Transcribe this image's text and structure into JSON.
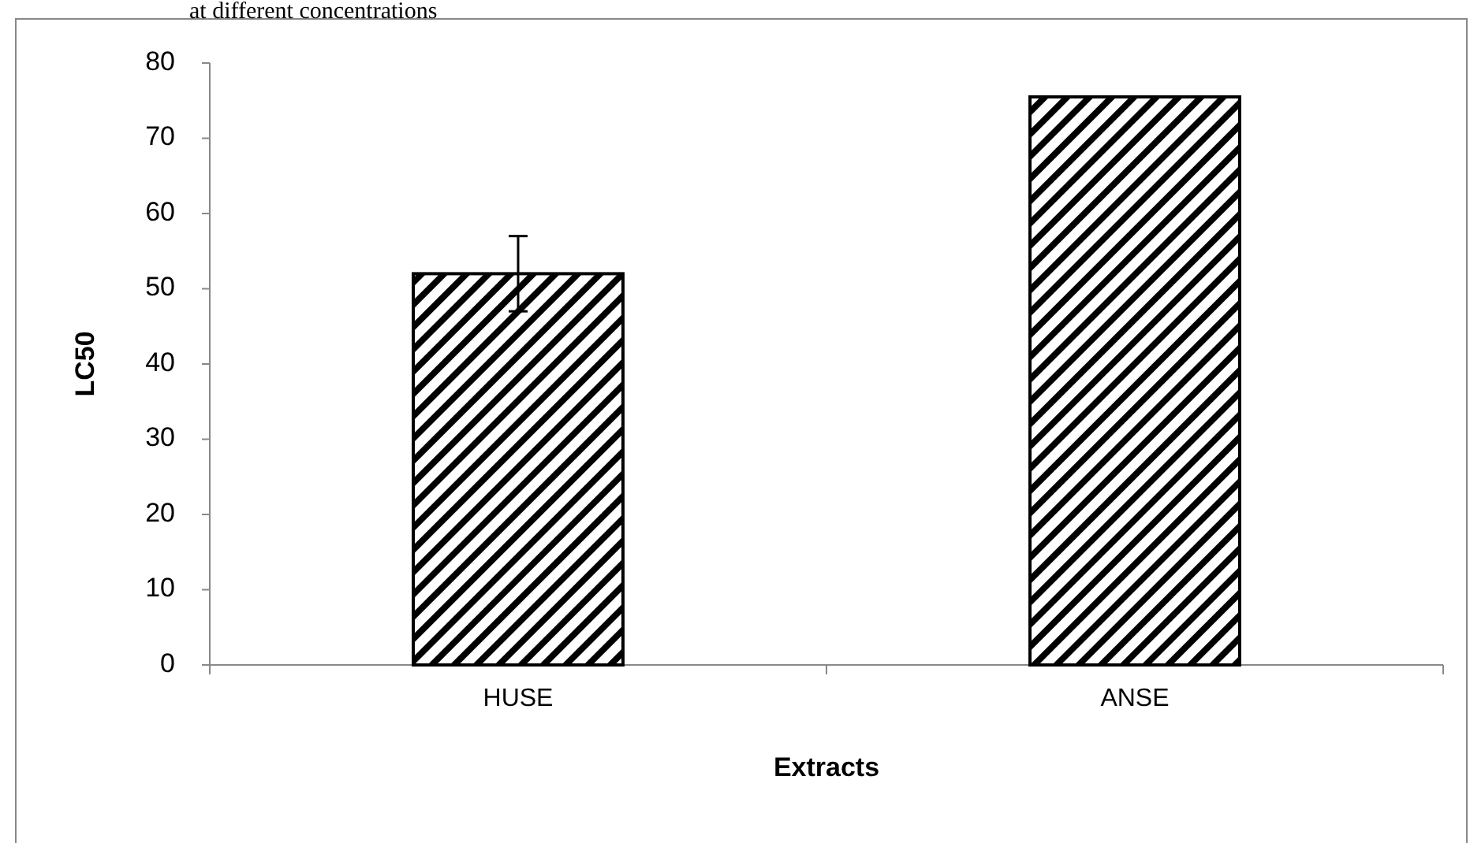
{
  "chart_data": {
    "type": "bar",
    "annotations": [
      "at different concentrations"
    ],
    "xlabel": "Extracts",
    "ylabel": "LC50",
    "categories": [
      "HUSE",
      "ANSE"
    ],
    "values": [
      52,
      75.5
    ],
    "errors": [
      5,
      null
    ],
    "color": "#000000",
    "ylim": [
      0,
      80
    ],
    "yticks": [
      0,
      10,
      20,
      30,
      40,
      50,
      60,
      70,
      80
    ]
  }
}
